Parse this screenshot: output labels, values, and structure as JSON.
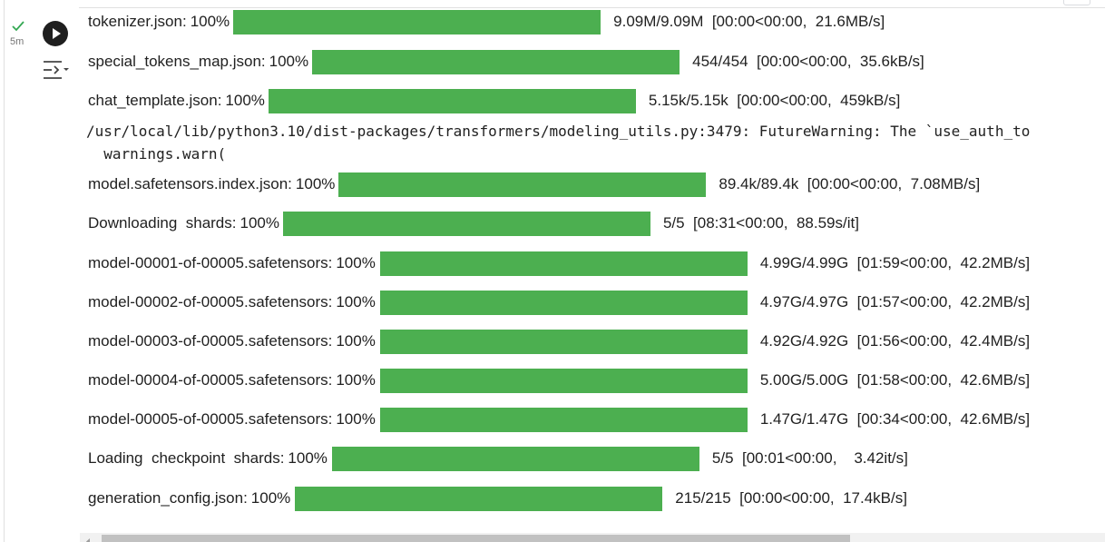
{
  "gutter": {
    "status_icon": "check-icon",
    "exec_time": "5m",
    "run_icon": "play-icon",
    "output_menu_icon": "output-menu-icon",
    "success_color": "#34a853"
  },
  "progress_color": "#4caf50",
  "output": {
    "rows": [
      {
        "desc": "tokenizer.json:",
        "pct": "100%",
        "progress": 1.0,
        "stats": "9.09M/9.09M  [00:00<00:00,  21.6MB/s]"
      },
      {
        "desc": "special_tokens_map.json:",
        "pct": "100%",
        "progress": 1.0,
        "stats": "454/454  [00:00<00:00,  35.6kB/s]"
      },
      {
        "desc": "chat_template.json:",
        "pct": "100%",
        "progress": 1.0,
        "stats": "5.15k/5.15k  [00:00<00:00,  459kB/s]"
      },
      {
        "desc": "model.safetensors.index.json:",
        "pct": "100%",
        "progress": 1.0,
        "stats": "89.4k/89.4k  [00:00<00:00,  7.08MB/s]"
      },
      {
        "desc": "Downloading  shards:",
        "pct": "100%",
        "progress": 1.0,
        "stats": "5/5  [08:31<00:00,  88.59s/it]"
      },
      {
        "desc": "model-00001-of-00005.safetensors:",
        "pct": "100%",
        "progress": 1.0,
        "stats": "4.99G/4.99G  [01:59<00:00,  42.2MB/s]"
      },
      {
        "desc": "model-00002-of-00005.safetensors:",
        "pct": "100%",
        "progress": 1.0,
        "stats": "4.97G/4.97G  [01:57<00:00,  42.2MB/s]"
      },
      {
        "desc": "model-00003-of-00005.safetensors:",
        "pct": "100%",
        "progress": 1.0,
        "stats": "4.92G/4.92G  [01:56<00:00,  42.4MB/s]"
      },
      {
        "desc": "model-00004-of-00005.safetensors:",
        "pct": "100%",
        "progress": 1.0,
        "stats": "5.00G/5.00G  [01:58<00:00,  42.6MB/s]"
      },
      {
        "desc": "model-00005-of-00005.safetensors:",
        "pct": "100%",
        "progress": 1.0,
        "stats": "1.47G/1.47G  [00:34<00:00,  42.6MB/s]"
      },
      {
        "desc": "Loading  checkpoint  shards:",
        "pct": "100%",
        "progress": 1.0,
        "stats": "5/5  [00:01<00:00,    3.42it/s]"
      },
      {
        "desc": "generation_config.json:",
        "pct": "100%",
        "progress": 1.0,
        "stats": "215/215  [00:00<00:00,  17.4kB/s]"
      }
    ],
    "warning_line_1": "/usr/local/lib/python3.10/dist-packages/transformers/modeling_utils.py:3479: FutureWarning: The `use_auth_to",
    "warning_line_2": "  warnings.warn("
  },
  "scrollbar": {
    "arrow_icon": "scroll-left-arrow-icon"
  }
}
